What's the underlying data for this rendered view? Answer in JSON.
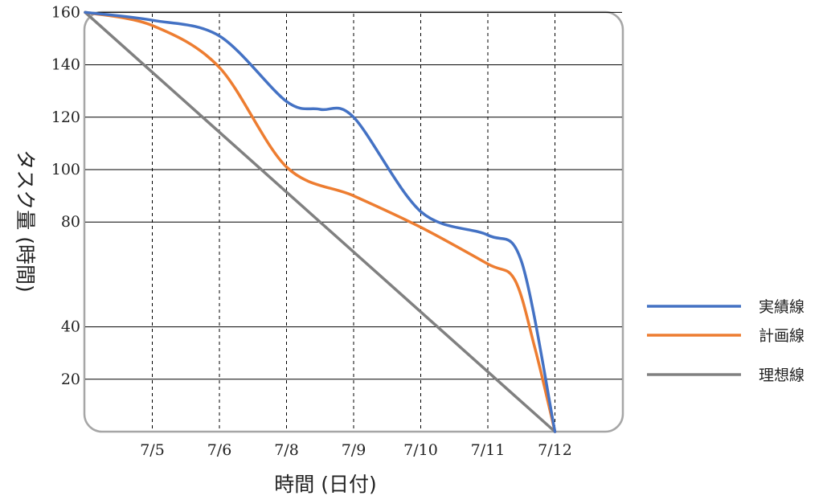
{
  "chart_data": {
    "type": "line",
    "xlabel": "時間 (日付)",
    "ylabel": "タスク量 (時間)",
    "x_ticks": [
      "7/5",
      "7/6",
      "7/8",
      "7/9",
      "7/10",
      "7/11",
      "7/12"
    ],
    "y_ticks": [
      20,
      40,
      80,
      100,
      120,
      140,
      160
    ],
    "ylim": [
      0,
      175
    ],
    "grid": {
      "horizontal": "solid",
      "vertical": "dashed"
    },
    "legend_position": "right",
    "series": [
      {
        "name": "実績線",
        "color": "#4472c4",
        "points": [
          [
            0,
            160
          ],
          [
            1,
            157
          ],
          [
            2,
            151
          ],
          [
            3,
            126
          ],
          [
            3.5,
            123
          ],
          [
            4,
            120
          ],
          [
            5,
            84
          ],
          [
            6,
            75
          ],
          [
            6.5,
            65
          ],
          [
            7,
            0
          ]
        ]
      },
      {
        "name": "計画線",
        "color": "#ed7d31",
        "points": [
          [
            0,
            160
          ],
          [
            1,
            155
          ],
          [
            2,
            139
          ],
          [
            3,
            101
          ],
          [
            4,
            90
          ],
          [
            5,
            78
          ],
          [
            6,
            64
          ],
          [
            6.4,
            58
          ],
          [
            6.7,
            32
          ],
          [
            7,
            0
          ]
        ]
      },
      {
        "name": "理想線",
        "color": "#808080",
        "points": [
          [
            0,
            160
          ],
          [
            7,
            0
          ]
        ]
      }
    ]
  }
}
